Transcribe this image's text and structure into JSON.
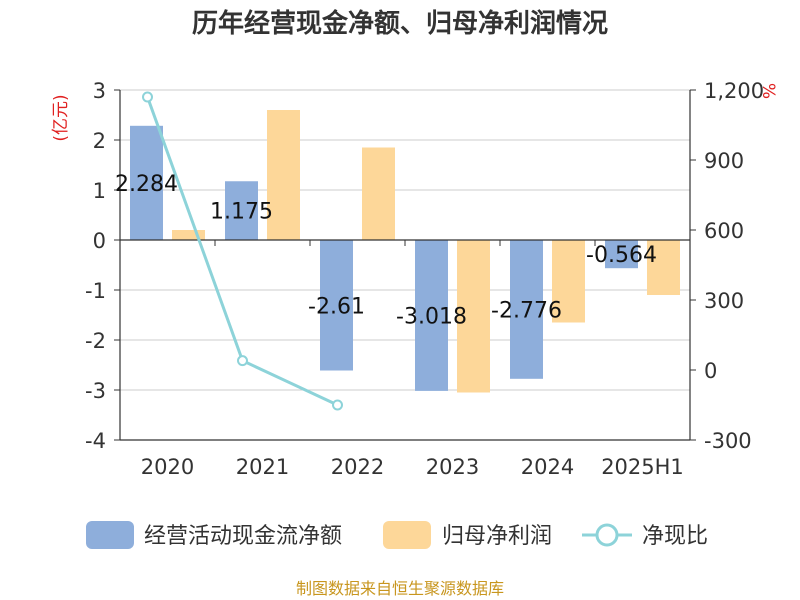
{
  "chart_data": {
    "type": "bar",
    "title": "历年经营现金净额、归母净利润情况",
    "categories": [
      "2020",
      "2021",
      "2022",
      "2023",
      "2024",
      "2025H1"
    ],
    "left_axis": {
      "unit_label": "(亿元)",
      "ylim": [
        -4,
        3
      ],
      "ticks": [
        "3",
        "2",
        "1",
        "0",
        "-1",
        "-2",
        "-3",
        "-4"
      ]
    },
    "right_axis": {
      "unit_label": "%",
      "ylim": [
        -300,
        1200
      ],
      "ticks": [
        "1,200",
        "900",
        "600",
        "300",
        "0",
        "-300"
      ]
    },
    "series": [
      {
        "name": "经营活动现金流净额",
        "axis": "left",
        "kind": "bar",
        "color": "#8eaedb",
        "values": [
          2.284,
          1.175,
          -2.61,
          -3.018,
          -2.776,
          -0.564
        ],
        "labels": [
          "2.284",
          "1.175",
          "-2.61",
          "-3.018",
          "-2.776",
          "-0.564"
        ]
      },
      {
        "name": "归母净利润",
        "axis": "left",
        "kind": "bar",
        "color": "#fdd799",
        "values": [
          0.2,
          2.6,
          1.85,
          -3.05,
          -1.65,
          -1.1
        ]
      },
      {
        "name": "净现比",
        "axis": "right",
        "kind": "line",
        "color": "#8dd3d9",
        "values": [
          1170,
          40,
          -150,
          null,
          null,
          null
        ]
      }
    ],
    "grid": true,
    "legend_position": "bottom",
    "source": "制图数据来自恒生聚源数据库"
  }
}
